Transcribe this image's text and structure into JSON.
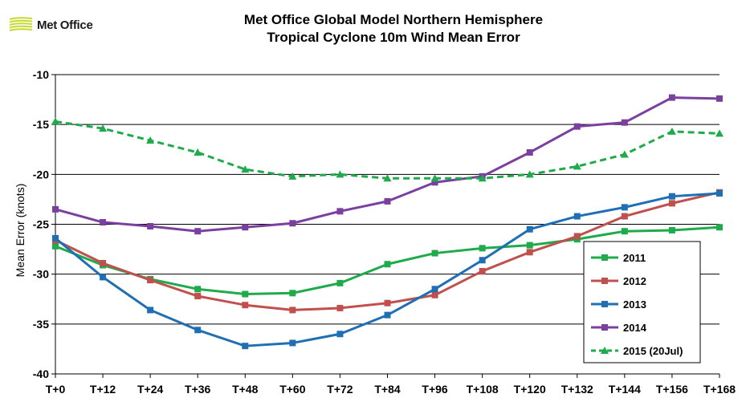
{
  "logo": {
    "text": "Met Office",
    "color": "#c6d92e"
  },
  "chart_data": {
    "type": "line",
    "title": "Met Office Global Model Northern Hemisphere",
    "subtitle": "Tropical Cyclone 10m Wind Mean Error",
    "xlabel": "",
    "ylabel": "Mean Error (knots)",
    "ylim": [
      -40,
      -10
    ],
    "yticks": [
      -10,
      -15,
      -20,
      -25,
      -30,
      -35,
      -40
    ],
    "grid": true,
    "legend_position": "bottom-right",
    "categories": [
      "T+0",
      "T+12",
      "T+24",
      "T+36",
      "T+48",
      "T+60",
      "T+72",
      "T+84",
      "T+96",
      "T+108",
      "T+120",
      "T+132",
      "T+144",
      "T+156",
      "T+168"
    ],
    "series": [
      {
        "name": "2011",
        "color": "#1faa4b",
        "marker": "square",
        "dashed": false,
        "values": [
          -27.2,
          -29.1,
          -30.5,
          -31.5,
          -32.0,
          -31.9,
          -30.9,
          -29.0,
          -27.9,
          -27.4,
          -27.1,
          -26.5,
          -25.7,
          -25.6,
          -25.3
        ]
      },
      {
        "name": "2012",
        "color": "#c0504d",
        "marker": "square",
        "dashed": false,
        "values": [
          -26.6,
          -28.9,
          -30.6,
          -32.2,
          -33.1,
          -33.6,
          -33.4,
          -32.9,
          -32.1,
          -29.7,
          -27.8,
          -26.2,
          -24.2,
          -22.9,
          -21.8
        ]
      },
      {
        "name": "2013",
        "color": "#1f6fb5",
        "marker": "square",
        "dashed": false,
        "values": [
          -26.4,
          -30.3,
          -33.6,
          -35.6,
          -37.2,
          -36.9,
          -36.0,
          -34.1,
          -31.5,
          -28.6,
          -25.5,
          -24.2,
          -23.3,
          -22.2,
          -21.9
        ]
      },
      {
        "name": "2014",
        "color": "#7b3fa0",
        "marker": "square",
        "dashed": false,
        "values": [
          -23.5,
          -24.8,
          -25.2,
          -25.7,
          -25.3,
          -24.9,
          -23.7,
          -22.7,
          -20.8,
          -20.2,
          -17.8,
          -15.2,
          -14.8,
          -12.3,
          -12.4
        ]
      },
      {
        "name": "2015 (20Jul)",
        "color": "#1faa4b",
        "marker": "triangle",
        "dashed": true,
        "values": [
          -14.7,
          -15.4,
          -16.6,
          -17.8,
          -19.5,
          -20.2,
          -20.0,
          -20.4,
          -20.4,
          -20.4,
          -20.0,
          -19.2,
          -18.0,
          -15.7,
          -15.9
        ]
      }
    ]
  }
}
